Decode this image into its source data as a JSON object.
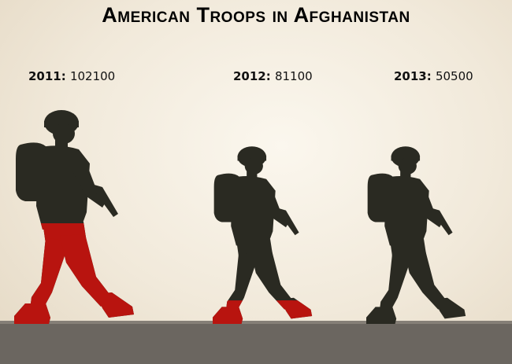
{
  "chart_data": {
    "type": "bar",
    "title": "American Troops in Afghanistan",
    "categories": [
      "2011",
      "2012",
      "2013"
    ],
    "values": [
      102100,
      81100,
      50500
    ],
    "label_separator": ":",
    "colors": {
      "fill": "#b8140f",
      "dark": "#2a2a22",
      "ground": "#6b6660",
      "background": "#f3ecdf"
    }
  }
}
